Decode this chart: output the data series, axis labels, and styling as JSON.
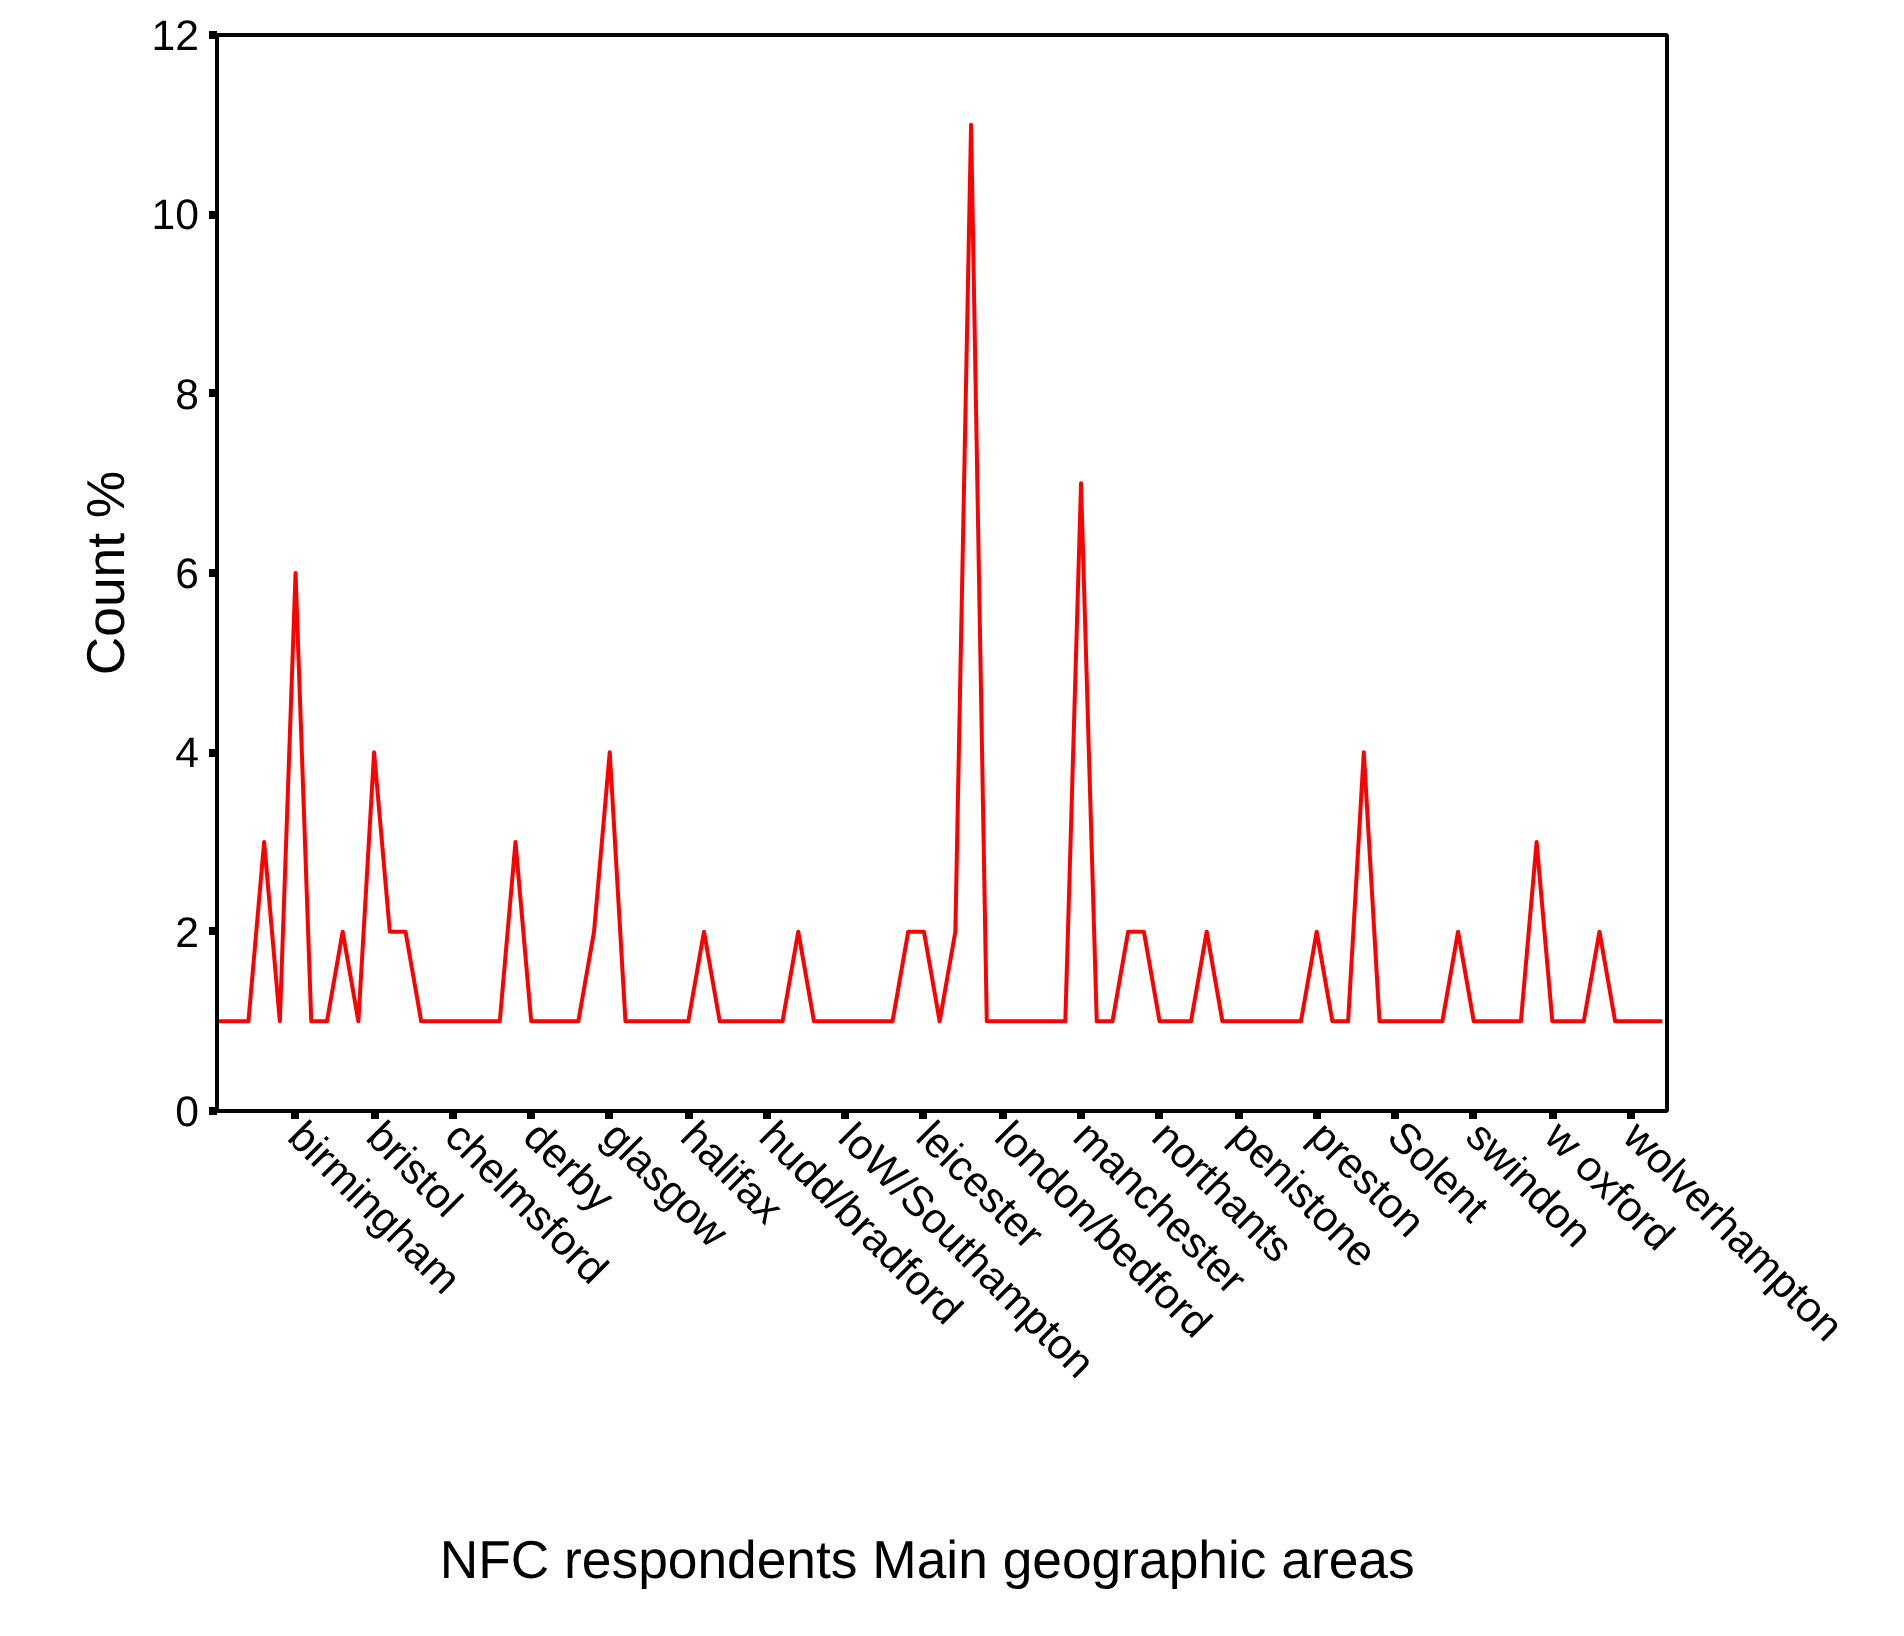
{
  "chart_data": {
    "type": "line",
    "xlabel": "NFC respondents  Main geographic  areas",
    "ylabel": "Count %",
    "categories": [
      null,
      null,
      null,
      null,
      null,
      "birmingham",
      null,
      null,
      null,
      null,
      "bristol",
      null,
      null,
      null,
      null,
      "chelmsford",
      null,
      null,
      null,
      null,
      "derby",
      null,
      null,
      null,
      null,
      "glasgow",
      null,
      null,
      null,
      null,
      "halifax",
      null,
      null,
      null,
      null,
      "hudd/bradford",
      null,
      null,
      null,
      null,
      "IoW/Southampton",
      null,
      null,
      null,
      null,
      "leicester",
      null,
      null,
      null,
      null,
      "london/bedford",
      null,
      null,
      null,
      null,
      "manchester",
      null,
      null,
      null,
      null,
      "northants",
      null,
      null,
      null,
      null,
      "penistone",
      null,
      null,
      null,
      null,
      "preston",
      null,
      null,
      null,
      null,
      "Solent",
      null,
      null,
      null,
      null,
      "swindon",
      null,
      null,
      null,
      null,
      "w oxford",
      null,
      null,
      null,
      null,
      "wolverhampton",
      null,
      null
    ],
    "series": [
      {
        "color": "#ff0000",
        "values": [
          1,
          1,
          1,
          3,
          1,
          6,
          1,
          1,
          2,
          1,
          4,
          2,
          2,
          1,
          1,
          1,
          1,
          1,
          1,
          3,
          1,
          1,
          1,
          1,
          2,
          4,
          1,
          1,
          1,
          1,
          1,
          2,
          1,
          1,
          1,
          1,
          1,
          2,
          1,
          1,
          1,
          1,
          1,
          1,
          2,
          2,
          1,
          2,
          11,
          1,
          1,
          1,
          1,
          1,
          1,
          7,
          1,
          1,
          2,
          2,
          1,
          1,
          1,
          2,
          1,
          1,
          1,
          1,
          1,
          1,
          2,
          1,
          1,
          4,
          1,
          1,
          1,
          1,
          1,
          2,
          1,
          1,
          1,
          1,
          3,
          1,
          1,
          1,
          2,
          1,
          1,
          1,
          1
        ]
      }
    ],
    "ylim": [
      0,
      12
    ],
    "yticks": [
      0,
      2,
      4,
      6,
      8,
      10,
      12
    ],
    "grid": false,
    "marker": "none",
    "line_style": "solid"
  }
}
